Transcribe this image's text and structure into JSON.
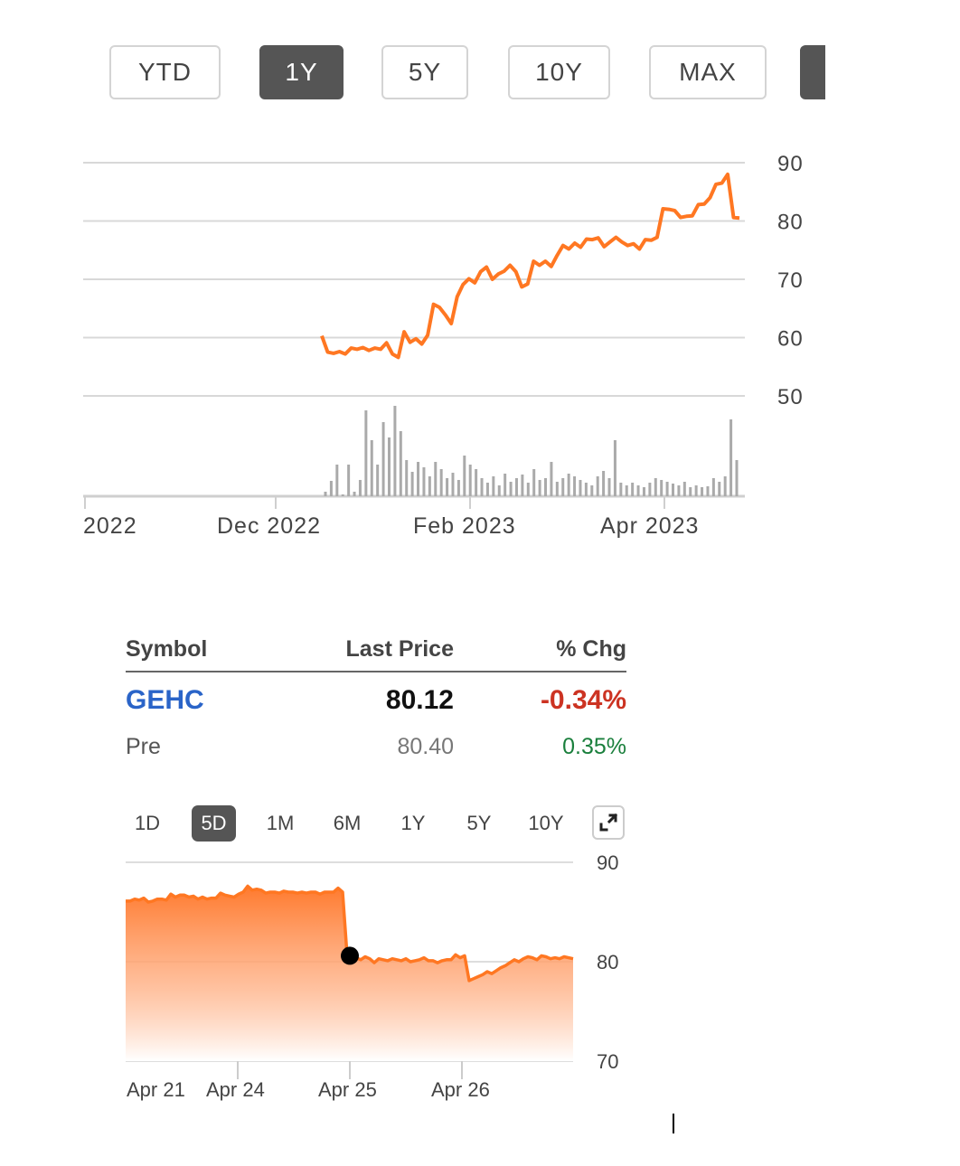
{
  "range_buttons": [
    "YTD",
    "1Y",
    "5Y",
    "10Y",
    "MAX"
  ],
  "range_active": "1Y",
  "chart_data": [
    {
      "type": "line",
      "y_ticks": [
        90,
        80,
        70,
        60,
        50
      ],
      "ylim": [
        50,
        90
      ],
      "x_tick_labels": [
        "2022",
        "Dec 2022",
        "Feb 2023",
        "Apr 2023"
      ],
      "line_color": "#ff7722",
      "grid": true,
      "series": [
        {
          "values": [
            60.3,
            57.5,
            57.3,
            57.6,
            57.2,
            58.2,
            58.0,
            58.3,
            57.8,
            58.2,
            58.0,
            59.1,
            57.2,
            56.6,
            61.0,
            59.2,
            59.8,
            58.9,
            60.4,
            65.7,
            65.2,
            63.9,
            62.4,
            67.0,
            69.1,
            70.1,
            69.4,
            71.3,
            72.1,
            70.0,
            70.9,
            71.4,
            72.4,
            71.3,
            68.7,
            69.2,
            73.1,
            72.4,
            73.1,
            72.2,
            74.1,
            75.8,
            75.2,
            76.2,
            75.5,
            76.9,
            76.8,
            77.1,
            75.6,
            76.4,
            77.2,
            76.4,
            75.8,
            76.1,
            75.2,
            76.8,
            76.7,
            77.2,
            82.1,
            82.0,
            81.8,
            80.6,
            80.8,
            80.9,
            82.8,
            82.9,
            84.0,
            86.3,
            86.5,
            88.0,
            80.6,
            80.5
          ]
        }
      ],
      "volume": [
        0.05,
        0.17,
        0.35,
        0.02,
        0.35,
        0.05,
        0.18,
        0.95,
        0.62,
        0.35,
        0.82,
        0.65,
        1.0,
        0.72,
        0.4,
        0.27,
        0.38,
        0.32,
        0.22,
        0.38,
        0.3,
        0.2,
        0.26,
        0.18,
        0.45,
        0.35,
        0.3,
        0.2,
        0.15,
        0.22,
        0.12,
        0.25,
        0.16,
        0.2,
        0.24,
        0.15,
        0.3,
        0.18,
        0.2,
        0.38,
        0.16,
        0.2,
        0.25,
        0.22,
        0.18,
        0.15,
        0.12,
        0.22,
        0.28,
        0.2,
        0.62,
        0.15,
        0.12,
        0.15,
        0.12,
        0.1,
        0.15,
        0.2,
        0.18,
        0.16,
        0.14,
        0.12,
        0.16,
        0.1,
        0.12,
        0.1,
        0.11,
        0.2,
        0.16,
        0.22,
        0.85,
        0.4
      ]
    },
    {
      "type": "area",
      "y_ticks": [
        90,
        80,
        70
      ],
      "ylim": [
        70,
        90
      ],
      "x_tick_labels": [
        "Apr 21",
        "Apr 24",
        "Apr 25",
        "Apr 26"
      ],
      "line_color": "#ff7722",
      "marker": {
        "value": 80.6
      },
      "series": [
        {
          "values": [
            86.1,
            86.1,
            86.3,
            86.2,
            86.4,
            86.0,
            86.1,
            86.3,
            86.3,
            86.2,
            86.8,
            86.5,
            86.7,
            86.7,
            86.5,
            86.6,
            86.3,
            86.5,
            86.3,
            86.4,
            86.4,
            86.9,
            86.7,
            86.6,
            86.5,
            86.8,
            87.0,
            87.6,
            87.2,
            87.3,
            87.2,
            86.9,
            87.0,
            87.0,
            86.9,
            87.1,
            87.0,
            87.0,
            86.9,
            87.0,
            86.9,
            87.0,
            87.0,
            86.8,
            87.0,
            87.0,
            87.0,
            87.4,
            87.0,
            80.6,
            80.3,
            80.4,
            80.2,
            80.5,
            80.3,
            79.9,
            80.3,
            80.2,
            80.1,
            80.3,
            80.2,
            80.1,
            80.3,
            80.0,
            80.1,
            80.2,
            80.4,
            80.1,
            80.1,
            79.9,
            80.1,
            80.2,
            80.2,
            80.7,
            80.4,
            80.6,
            78.1,
            78.3,
            78.5,
            78.7,
            79.0,
            78.8,
            79.1,
            79.4,
            79.6,
            79.9,
            80.2,
            80.0,
            80.3,
            80.5,
            80.4,
            80.2,
            80.6,
            80.5,
            80.3,
            80.4,
            80.3,
            80.5,
            80.4,
            80.3
          ]
        }
      ]
    }
  ],
  "quote": {
    "headers": {
      "symbol": "Symbol",
      "last_price": "Last Price",
      "pct_chg": "% Chg"
    },
    "symbol": "GEHC",
    "last_price": "80.12",
    "pct_chg": "-0.34%",
    "pre_label": "Pre",
    "pre_price": "80.40",
    "pre_chg": "0.35%"
  },
  "mini_tabs": [
    "1D",
    "5D",
    "1M",
    "6M",
    "1Y",
    "5Y",
    "10Y"
  ],
  "mini_tab_active": "5D",
  "icons": {
    "expand": "expand-icon"
  },
  "colors": {
    "accent": "#ff7722",
    "symbol": "#2a64c8",
    "negative": "#cc3322",
    "positive": "#1a7f3c",
    "active_button": "#555555"
  }
}
